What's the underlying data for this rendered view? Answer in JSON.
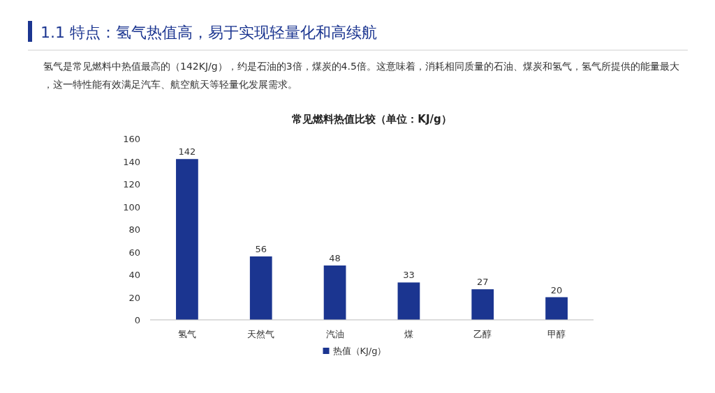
{
  "chart_data": {
    "type": "bar",
    "title": "常见燃料热值比较（单位：KJ/g）",
    "annotations": [
      "1.1 特点：氢气热值高，易于实现轻量化和高续航",
      "氢气是常见燃料中热值最高的（142KJ/g），约是石油的3倍，煤炭的4.5倍。这意味着，消耗相同质量的石油、煤炭和氢气，氢气所提供的能量最大，这一特性能有效满足汽车、航空航天等轻量化发展需求。"
    ],
    "categories": [
      "氢气",
      "天然气",
      "汽油",
      "煤",
      "乙醇",
      "甲醇"
    ],
    "series": [
      {
        "name": "热值（KJ/g）",
        "color": "#1b3590",
        "values": [
          142,
          56,
          48,
          33,
          27,
          20
        ]
      }
    ],
    "ylim": [
      0,
      160
    ],
    "yticks": [
      0,
      20,
      40,
      60,
      80,
      100,
      120,
      140,
      160
    ],
    "grid": false,
    "data_labels": true,
    "legend": "bottom"
  }
}
